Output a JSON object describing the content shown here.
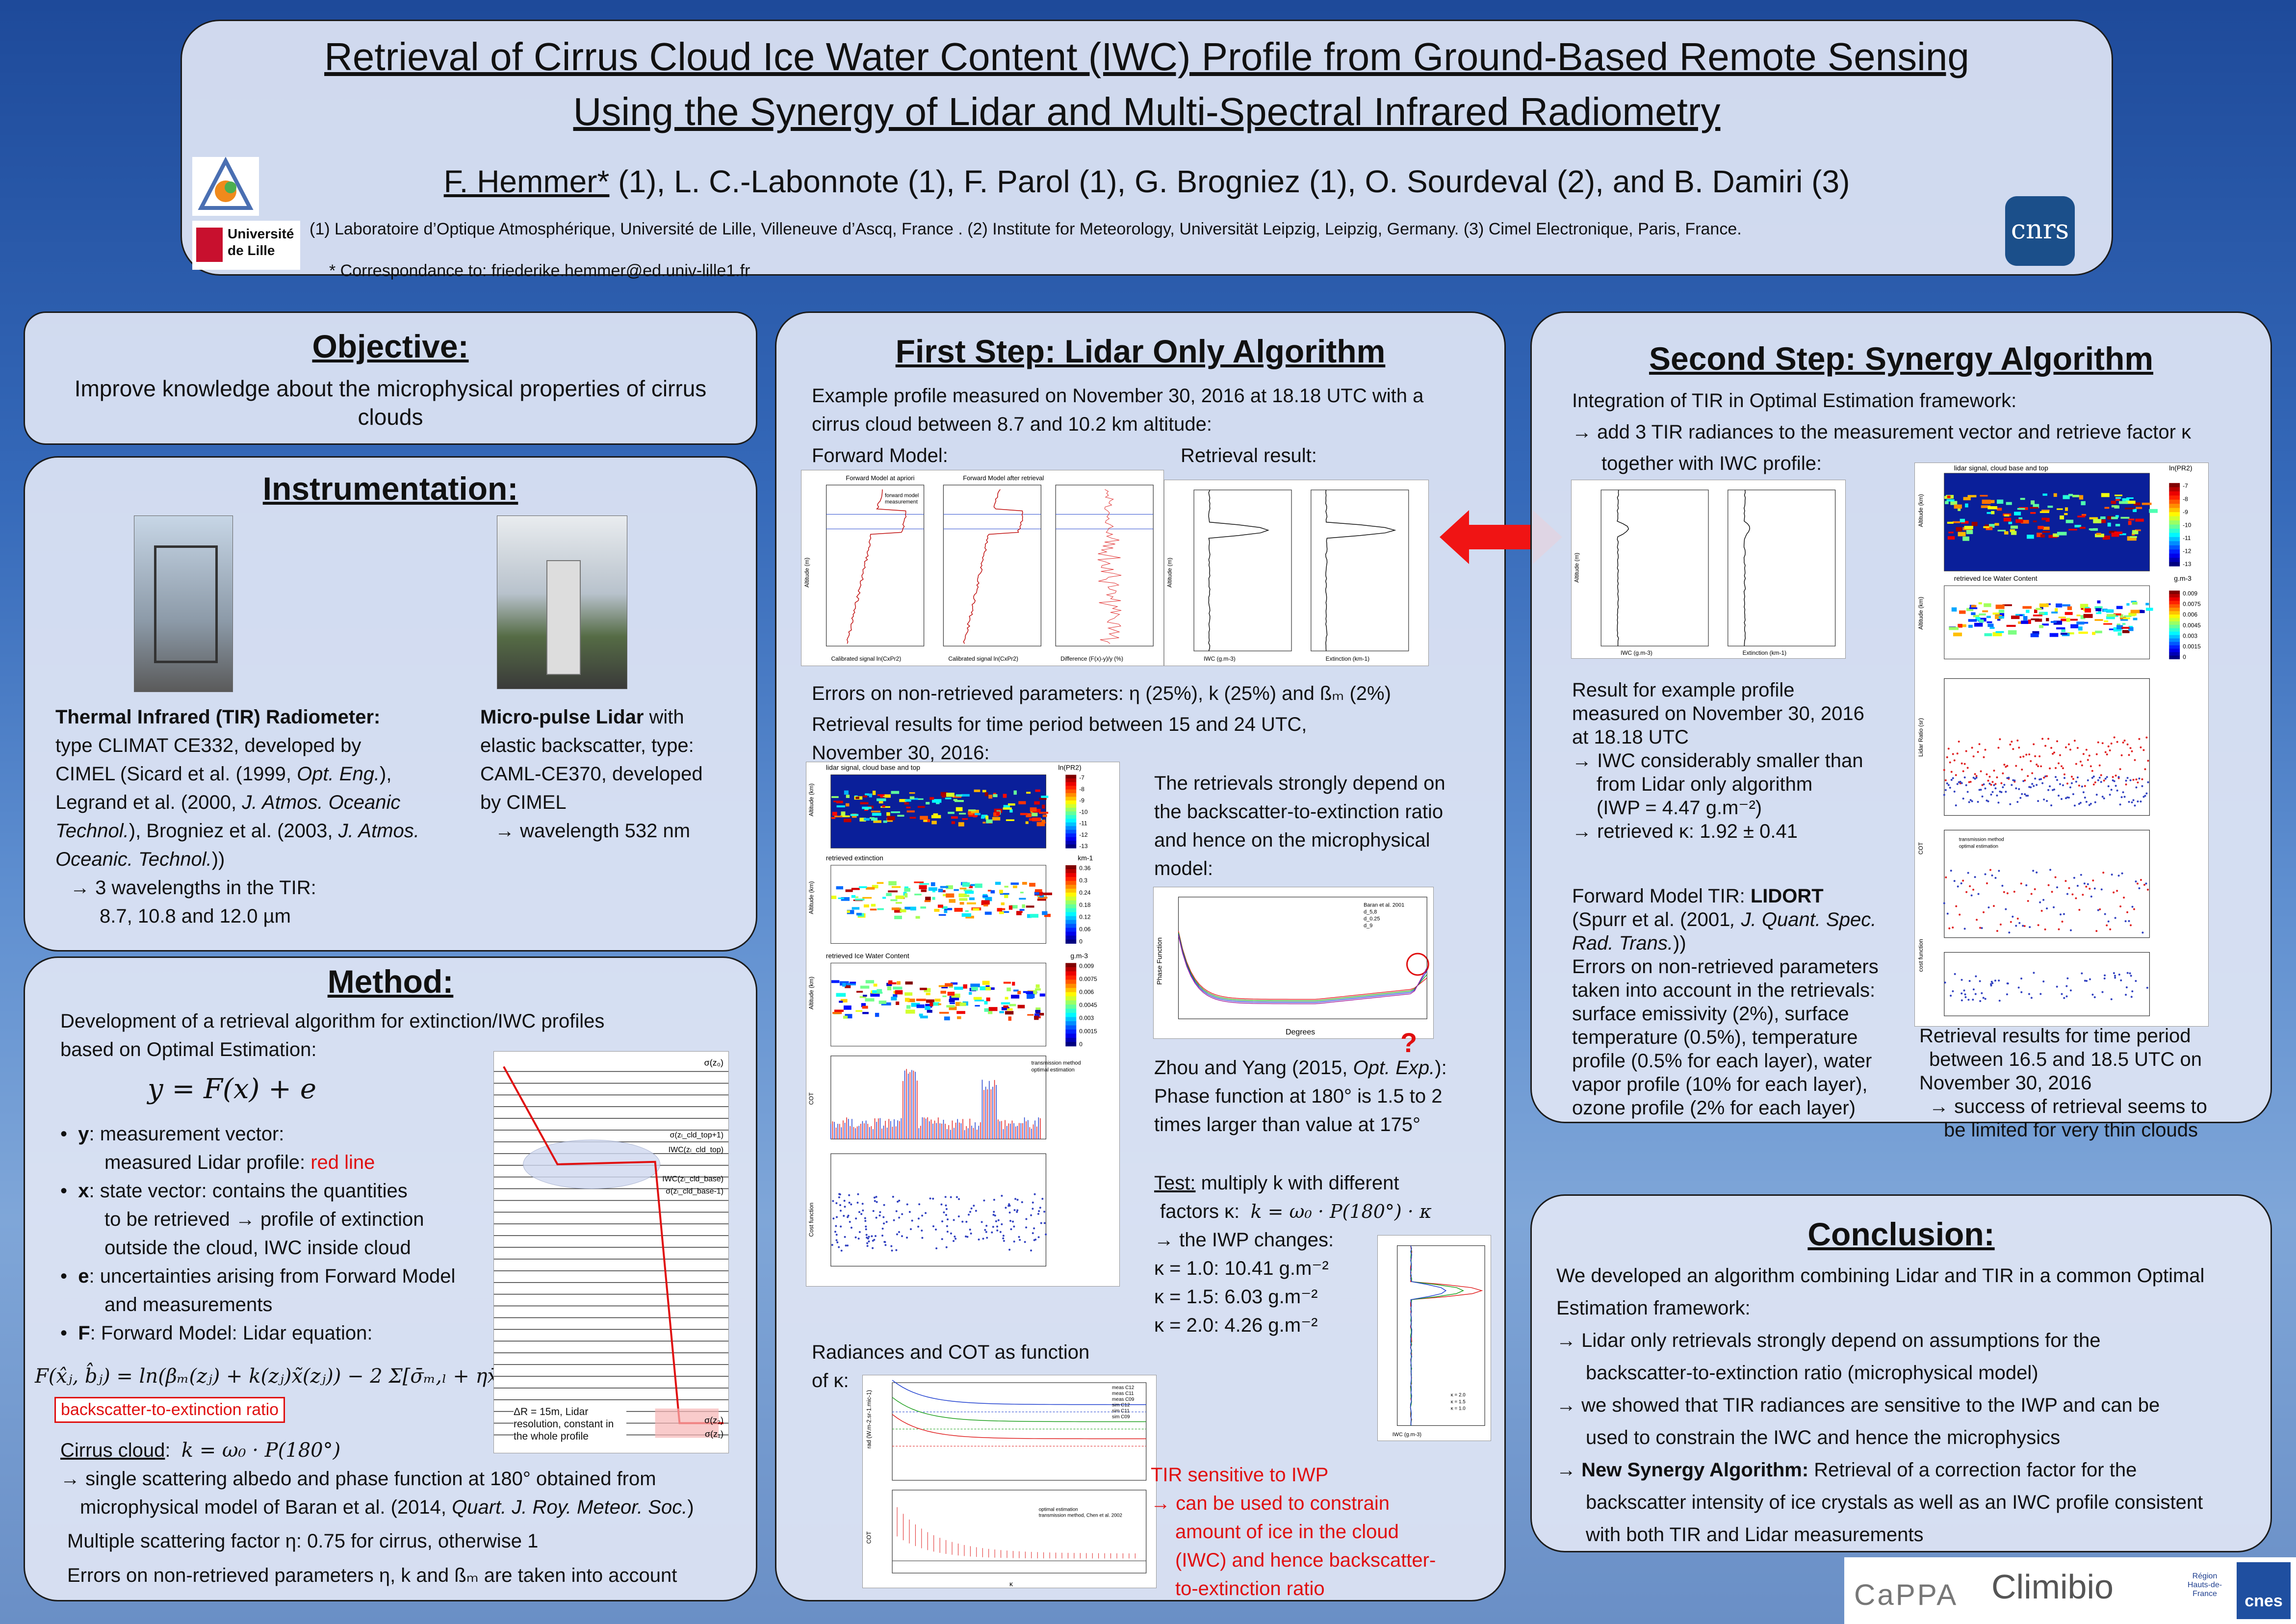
{
  "header": {
    "title_line1": "Retrieval of Cirrus Cloud Ice Water Content (IWC) Profile from Ground-Based Remote Sensing",
    "title_line2": "Using the Synergy of Lidar and Multi-Spectral Infrared Radiometry",
    "first_author": "F. Hemmer*",
    "authors_rest": " (1),  L. C.-Labonnote (1), F. Parol (1), G. Brogniez (1), O. Sourdeval (2), and B. Damiri (3)",
    "affiliations": "(1) Laboratoire d’Optique Atmosphérique, Université de Lille, Villeneuve d’Ascq, France . (2) Institute for Meteorology, Universität Leipzig, Leipzig, Germany. (3) Cimel Electronique, Paris, France.",
    "correspondence": "* Correspondance to: friederike.hemmer@ed.univ-lille1.fr",
    "logo_univ": "Université de Lille",
    "logo_cnrs": "cnrs"
  },
  "objective": {
    "title": "Objective:",
    "text": "Improve knowledge about the microphysical properties of cirrus clouds"
  },
  "instrumentation": {
    "title": "Instrumentation:",
    "tir_name": "Thermal Infrared (TIR) Radiometer:",
    "tir_l1": "type CLIMAT CE332, developed by",
    "tir_l2a": "CIMEL (Sicard et al. (1999, ",
    "tir_l2b": "Opt. Eng.",
    "tir_l2c": "),",
    "tir_l3a": "Legrand et al. (2000, ",
    "tir_l3b": "J. Atmos. Oceanic",
    "tir_l4a": "Technol.",
    "tir_l4b": "), Brogniez et al. (2003, ",
    "tir_l4c": "J. Atmos.",
    "tir_l5a": "Oceanic. Technol.",
    "tir_l5b": "))",
    "tir_l6": "→ 3 wavelengths in the TIR:",
    "tir_l7": "8.7, 10.8 and 12.0 µm",
    "lidar_name": "Micro-pulse Lidar",
    "lidar_l1b": " with",
    "lidar_l2": "elastic backscatter, type:",
    "lidar_l3": "CAML-CE370, developed",
    "lidar_l4": "by CIMEL",
    "lidar_l5": "→ wavelength 532 nm"
  },
  "method": {
    "title": "Method:",
    "intro1": "Development of a retrieval algorithm for extinction/IWC profiles",
    "intro2": "based on Optimal Estimation:",
    "equation": "y = F(x) + e",
    "y_a": "y",
    "y_b": ": measurement vector:",
    "y2a": "measured Lidar profile: ",
    "y2b": "red line",
    "x_a": "x",
    "x_b": ": state vector: contains the quantities",
    "x2": "to be retrieved → profile of extinction",
    "x3": "outside the cloud, IWC inside cloud",
    "e_a": "e",
    "e_b": ": uncertainties arising from Forward Model",
    "e2": "and measurements",
    "f_a": "F",
    "f_b": ": Forward Model: Lidar equation:",
    "lidar_eq": "F(x̂ⱼ, b̂ⱼ) = ln(βₘ(zⱼ) + k(zⱼ)x̃(zⱼ)) − 2 Σ[σ̄ₘ,ₗ + ηx̄ₗ]ΔR",
    "bte_box": "backscatter-to-extinction ratio",
    "cirrus_a": "Cirrus cloud",
    "cirrus_eq": "k = ω₀ · P(180°)",
    "cirrus_l1": "→ single scattering albedo and phase function at 180° obtained from",
    "cirrus_l2a": "microphysical model of Baran et al. (2014, ",
    "cirrus_l2b": "Quart. J. Roy. Meteor. Soc.",
    "cirrus_l2c": ")",
    "ms_factor": "Multiple scattering factor η: 0.75 for cirrus, otherwise 1",
    "errors": "Errors on non-retrieved parameters η, k and ßₘ are taken into account",
    "diag_top": "σ(z₀)",
    "diag_l1": "σ(zₗ_cld_top+1)",
    "diag_l2": "IWC(zₗ_cld_top)",
    "diag_l3": "IWC(zₗ_cld_base)",
    "diag_l4": "σ(zₗ_cld_base-1)",
    "diag_b1": "σ(z₂)",
    "diag_b2": "σ(z₁)",
    "diag_note": "ΔR = 15m, Lidar resolution, constant in the whole profile"
  },
  "first_step": {
    "title": "First Step: Lidar Only Algorithm",
    "intro1": "Example profile measured on November 30, 2016 at 18.18 UTC with a",
    "intro2": "cirrus cloud between 8.7 and 10.2 km altitude:",
    "fwd_label": "Forward Model:",
    "ret_label": "Retrieval result:",
    "errors": "Errors on non-retrieved parameters: η (25%), k (25%) and ßₘ (2%)",
    "period1": "Retrieval results for time period between 15 and 24 UTC,",
    "period2": "November 30, 2016:",
    "dep1": "The retrievals strongly depend on",
    "dep2": "the backscatter-to-extinction ratio",
    "dep3": "and hence on the microphysical",
    "dep4": "model:",
    "zhou1a": "Zhou and Yang (2015, ",
    "zhou1b": "Opt. Exp.",
    "zhou1c": "):",
    "zhou2": "Phase function at 180° is 1.5 to 2",
    "zhou3": "times larger than value at 175°",
    "test_a": "Test:",
    "test_b": " multiply k with different",
    "test2": "factors κ:",
    "test_eq": "k = ω₀ · P(180°) · κ",
    "test3": "→ the IWP changes:",
    "k1": "κ = 1.0: 10.41 g.m⁻²",
    "k2": "κ = 1.5:   6.03 g.m⁻²",
    "k3": "κ = 2.0:   4.26 g.m⁻²",
    "rad1": "Radiances and COT as function",
    "rad2": "of κ:",
    "tir1": "TIR sensitive to IWP",
    "tir2": "→ can be used to constrain",
    "tir3": "amount of ice in the cloud",
    "tir4": "(IWC) and hence backscatter-",
    "tir5": "to-extinction ratio",
    "question": "?"
  },
  "second_step": {
    "title": "Second Step: Synergy Algorithm",
    "l1": "Integration of TIR in Optimal Estimation framework:",
    "l2": "→ add 3 TIR radiances to the measurement vector and retrieve factor κ",
    "l3": "together with IWC profile:",
    "res1": "Result for example profile",
    "res2": "measured on November 30, 2016",
    "res3": "at 18.18 UTC",
    "res4": "→ IWC considerably smaller than",
    "res5": "from Lidar only algorithm",
    "res6": "(IWP = 4.47 g.m⁻²)",
    "res7": "→ retrieved κ: 1.92 ± 0.41",
    "fm1a": "Forward Model TIR: ",
    "fm1b": "LIDORT",
    "fm2a": "(Spurr et al. (2001",
    "fm2b": ", J. Quant. Spec.",
    "fm3a": "Rad. Trans.",
    "fm3b": "))",
    "fm4": "Errors on non-retrieved parameters",
    "fm5": "taken into account in the retrievals:",
    "fm6": "surface emissivity (2%), surface",
    "fm7": "temperature (0.5%), temperature",
    "fm8": "profile (0.5% for each layer), water",
    "fm9": "vapor profile (10% for each layer),",
    "fm10": "ozone profile (2% for each layer)",
    "tp1": "Retrieval results for time period",
    "tp2": "between 16.5 and 18.5 UTC on",
    "tp3": "November 30, 2016",
    "tp4": "→ success of retrieval seems to",
    "tp5": "be limited for very thin clouds"
  },
  "conclusion": {
    "title": "Conclusion:",
    "l1": "We developed an algorithm combining Lidar and TIR in a common Optimal",
    "l2": "Estimation framework:",
    "l3": "→ Lidar only retrievals strongly depend on assumptions for the",
    "l4": "backscatter-to-extinction ratio (microphysical model)",
    "l5": "→ we showed that TIR radiances are sensitive to the IWP and can be",
    "l6": "used to constrain the IWC and hence the microphysics",
    "l7a": "→ ",
    "l7b": "New Synergy Algorithm:",
    "l7c": " Retrieval of a correction factor for the",
    "l8": "backscatter intensity of ice crystals as well as an IWC profile consistent",
    "l9": "with both TIR and Lidar measurements"
  },
  "footer_logos": {
    "cappa": "CaPPA",
    "climibio": "Climibio",
    "region": "Région Hauts-de-France",
    "cnes": "cnes"
  },
  "figures": {
    "fwd_t1": "Forward Model at apriori",
    "fwd_t2": "Forward Model after retrieval",
    "fwd_leg1": "forward model",
    "fwd_leg2": "measurement",
    "fwd_x1": "Calibrated signal ln(CxPr2)",
    "fwd_x2": "Calibrated signal ln(CxPr2)",
    "fwd_x3": "Difference (F(x)-y)/y (%)",
    "alt_m": "Altitude (m)",
    "iwc_x": "IWC (g.m-3)",
    "ext_x": "Extinction (km-1)",
    "ts_t1": "lidar signal, cloud base and top",
    "ts_u1": "ln(PR2)",
    "ts_t2": "retrieved extinction",
    "ts_u2": "km-1",
    "ts_t3": "retrieved Ice Water Content",
    "ts_u3": "g.m-3",
    "alt_km": "Altitude (km)",
    "cot": "COT",
    "costf": "Cost function",
    "leg_tm": "transmission method",
    "leg_oe": "optimal estimation",
    "cb1": [
      "-7",
      "-8",
      "-9",
      "-10",
      "-11",
      "-12",
      "-13"
    ],
    "cb2": [
      "0.36",
      "0.3",
      "0.24",
      "0.18",
      "0.12",
      "0.06",
      "0"
    ],
    "cb3": [
      "0.009",
      "0.0075",
      "0.006",
      "0.0045",
      "0.003",
      "0.0015",
      "0"
    ],
    "pf_y": "Phase Function",
    "pf_x": "Degrees",
    "pf_leg": [
      "Baran et al. 2001",
      "d_5,8",
      "d_0.25",
      "d_9"
    ],
    "tn_leg": [
      "κ = 2.0",
      "κ = 1.5",
      "κ = 1.0"
    ],
    "rad_y": "rad (W.m-2.sr-1.mic-1)",
    "rad_leg": [
      "meas C12",
      "meas C11",
      "meas C09",
      "sim C12",
      "sim C11",
      "sim C09"
    ],
    "cotk_leg1": "optimal estimation",
    "cotk_leg2": "transmission method, Chen et al. 2002",
    "kappa": "κ",
    "lr_y": "Lidar Ratio (sr)",
    "costf2": "cost function",
    "ts_t4": "lidar signal, cloud base and top",
    "ts_u4": "ln(PR2)",
    "ts_t5": "retrieved Ice Water Content",
    "ts_u5": "g.m-3"
  }
}
